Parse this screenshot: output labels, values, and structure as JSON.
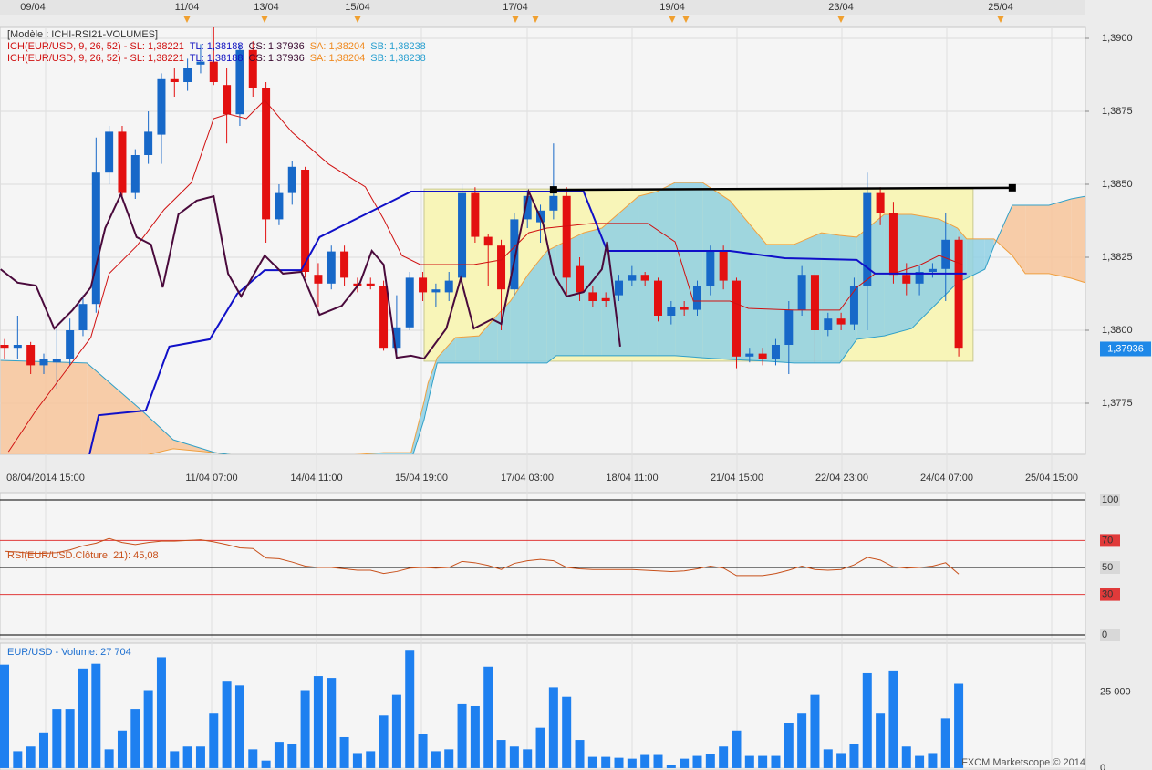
{
  "chart_data": [
    {
      "type": "candlestick",
      "legend": {
        "model": "[Modèle : ICHI-RSI21-VOLUMES]",
        "rows": [
          [
            {
              "text": "ICH(EUR/USD, 9, 26, 52) -  SL: 1,38221",
              "color": "#d01010"
            },
            {
              "text": "TL: 1,38188",
              "color": "#1010c0"
            },
            {
              "text": "CS: 1,37936",
              "color": "#3a0a30"
            },
            {
              "text": "SA: 1,38204",
              "color": "#f08a20"
            },
            {
              "text": "SB: 1,38238",
              "color": "#2aa0d0"
            }
          ],
          [
            {
              "text": "ICH(EUR/USD, 9, 26, 52) -  SL: 1,38221",
              "color": "#d01010"
            },
            {
              "text": "TL: 1,38188",
              "color": "#1010c0"
            },
            {
              "text": "CS: 1,37936",
              "color": "#3a0a30"
            },
            {
              "text": "SA: 1,38204",
              "color": "#f08a20"
            },
            {
              "text": "SB: 1,38238",
              "color": "#2aa0d0"
            }
          ]
        ]
      },
      "top_dates": [
        "09/04",
        "11/04",
        "13/04",
        "15/04",
        "17/04",
        "19/04",
        "23/04",
        "25/04"
      ],
      "time_labels": [
        "08/04/2014 15:00",
        "11/04 07:00",
        "14/04 11:00",
        "15/04 19:00",
        "17/04 03:00",
        "18/04 11:00",
        "21/04 15:00",
        "22/04 23:00",
        "24/04 07:00",
        "25/04 15:00"
      ],
      "open": [
        1.3795,
        1.3794,
        1.3795,
        1.3788,
        1.3789,
        1.379,
        1.38,
        1.3809,
        1.3854,
        1.3868,
        1.3847,
        1.386,
        1.3867,
        1.3886,
        1.3885,
        1.3891,
        1.3892,
        1.3884,
        1.3874,
        1.3896,
        1.3883,
        1.3838,
        1.3847,
        1.3855,
        1.3819,
        1.3816,
        1.3827,
        1.3816,
        1.3816,
        1.3815,
        1.3794,
        1.3801,
        1.3818,
        1.3813,
        1.3813,
        1.3818,
        1.3847,
        1.3832,
        1.3829,
        1.3814,
        1.3838,
        1.3837,
        1.3841,
        1.3846,
        1.3822,
        1.3813,
        1.3811,
        1.3812,
        1.3817,
        1.3819,
        1.3817,
        1.3805,
        1.3808,
        1.3807,
        1.3815,
        1.3827,
        1.3817,
        1.3791,
        1.3792,
        1.379,
        1.3795,
        1.3807,
        1.3819,
        1.38,
        1.3804,
        1.3802,
        1.3815,
        1.3847,
        1.384,
        1.3819,
        1.3816,
        1.382,
        1.3821,
        1.3831
      ],
      "high": [
        1.3797,
        1.3805,
        1.3796,
        1.3792,
        1.3802,
        1.3804,
        1.3812,
        1.3866,
        1.387,
        1.387,
        1.3862,
        1.3875,
        1.3888,
        1.389,
        1.3893,
        1.3898,
        1.3905,
        1.389,
        1.3898,
        1.3899,
        1.3885,
        1.385,
        1.3858,
        1.3856,
        1.3823,
        1.3829,
        1.3829,
        1.3818,
        1.3818,
        1.3817,
        1.3812,
        1.382,
        1.382,
        1.3816,
        1.382,
        1.385,
        1.3849,
        1.3833,
        1.3831,
        1.384,
        1.3848,
        1.3843,
        1.3864,
        1.3849,
        1.3825,
        1.3815,
        1.3813,
        1.3819,
        1.3822,
        1.382,
        1.3818,
        1.381,
        1.381,
        1.3817,
        1.3829,
        1.3829,
        1.3818,
        1.3794,
        1.3794,
        1.3797,
        1.381,
        1.3822,
        1.382,
        1.3806,
        1.3806,
        1.3818,
        1.3854,
        1.3849,
        1.3844,
        1.3823,
        1.3822,
        1.3823,
        1.384,
        1.3832
      ],
      "low": [
        1.379,
        1.379,
        1.3785,
        1.3785,
        1.378,
        1.3788,
        1.3798,
        1.3806,
        1.385,
        1.3845,
        1.3845,
        1.3857,
        1.3857,
        1.388,
        1.3882,
        1.3888,
        1.3884,
        1.3864,
        1.387,
        1.388,
        1.383,
        1.3836,
        1.3843,
        1.3818,
        1.3808,
        1.3814,
        1.3815,
        1.3813,
        1.3814,
        1.3793,
        1.3792,
        1.38,
        1.381,
        1.3808,
        1.381,
        1.381,
        1.383,
        1.3815,
        1.38,
        1.3812,
        1.3835,
        1.383,
        1.3838,
        1.3812,
        1.381,
        1.3808,
        1.3808,
        1.381,
        1.3815,
        1.3815,
        1.3803,
        1.3802,
        1.3805,
        1.3805,
        1.3812,
        1.3814,
        1.3787,
        1.3789,
        1.3788,
        1.3788,
        1.3785,
        1.3805,
        1.3789,
        1.3798,
        1.38,
        1.38,
        1.38,
        1.3836,
        1.3816,
        1.3812,
        1.3812,
        1.3818,
        1.381,
        1.3791
      ],
      "close": [
        1.3794,
        1.3795,
        1.3788,
        1.379,
        1.379,
        1.38,
        1.3809,
        1.3854,
        1.3868,
        1.3847,
        1.386,
        1.3868,
        1.3886,
        1.3885,
        1.389,
        1.3892,
        1.3885,
        1.3874,
        1.3896,
        1.3883,
        1.3838,
        1.3847,
        1.3856,
        1.382,
        1.3816,
        1.3827,
        1.3818,
        1.3815,
        1.3815,
        1.3794,
        1.3801,
        1.3818,
        1.3813,
        1.3814,
        1.3817,
        1.3847,
        1.3832,
        1.3829,
        1.3814,
        1.3838,
        1.3846,
        1.3841,
        1.3846,
        1.3818,
        1.3813,
        1.381,
        1.381,
        1.3817,
        1.3819,
        1.3817,
        1.3805,
        1.3808,
        1.3807,
        1.3815,
        1.3827,
        1.3817,
        1.3791,
        1.3792,
        1.379,
        1.3795,
        1.3807,
        1.3819,
        1.38,
        1.3804,
        1.3802,
        1.3815,
        1.3847,
        1.384,
        1.3819,
        1.3816,
        1.382,
        1.3821,
        1.3831,
        1.3794
      ],
      "colors": {
        "up": "#1768c8",
        "down": "#e31010"
      },
      "ylim": [
        1.37575,
        1.390375
      ],
      "yticks": [
        {
          "value": 1.3775,
          "label": "1,3775"
        },
        {
          "value": 1.38,
          "label": "1,3800"
        },
        {
          "value": 1.3825,
          "label": "1,3825"
        },
        {
          "value": 1.385,
          "label": "1,3850"
        },
        {
          "value": 1.3875,
          "label": "1,3875"
        },
        {
          "value": 1.39,
          "label": "1,3900"
        }
      ],
      "box": {
        "x": [
          32.1,
          74.1
        ],
        "values": [
          1.37894,
          1.38484
        ],
        "color": "#f8f5b8"
      },
      "cloud": {
        "x": [
          -0.3,
          6.3,
          10.5,
          12.9,
          16.1,
          20.6,
          29.0,
          31.1,
          32.1,
          32.4,
          33.1,
          34.5,
          36.3,
          37.7,
          38.7,
          40.1,
          41.5,
          42.2,
          44.3,
          45.7,
          48.5,
          49.9,
          51.3,
          53.4,
          55.5,
          58.3,
          60.4,
          62.5,
          63.9,
          65.2,
          67.3,
          69.4,
          71.5,
          72.9,
          73.6,
          75.0,
          75.7,
          77.1,
          78.1,
          79.9,
          81.6,
          82.7
        ],
        "sa": [
          1.37553,
          1.37553,
          1.37569,
          1.37594,
          1.37581,
          1.37553,
          1.37581,
          1.37581,
          1.37756,
          1.37819,
          1.37906,
          1.37975,
          1.37981,
          1.38053,
          1.381,
          1.38194,
          1.38272,
          1.38288,
          1.38334,
          1.3835,
          1.38459,
          1.38475,
          1.38506,
          1.38506,
          1.38444,
          1.38294,
          1.38294,
          1.38334,
          1.38325,
          1.38319,
          1.38397,
          1.38397,
          1.38381,
          1.3835,
          1.38313,
          1.38313,
          1.38313,
          1.38256,
          1.38194,
          1.38194,
          1.38178,
          1.38163
        ],
        "sb": [
          1.37897,
          1.37888,
          1.37725,
          1.37625,
          1.37581,
          1.37553,
          1.37538,
          1.37553,
          1.37694,
          1.37756,
          1.37888,
          1.37888,
          1.37888,
          1.37888,
          1.37888,
          1.37888,
          1.37888,
          1.37913,
          1.37913,
          1.37913,
          1.37913,
          1.37913,
          1.37913,
          1.37906,
          1.379,
          1.37894,
          1.37888,
          1.37888,
          1.37888,
          1.37969,
          1.37981,
          1.38006,
          1.381,
          1.38163,
          1.38178,
          1.38209,
          1.38288,
          1.38428,
          1.38428,
          1.38428,
          1.3845,
          1.38459
        ],
        "sa_color": "#f0a040",
        "sb_color": "#30a0c8",
        "fill_up": "#8fd0e4",
        "fill_down": "#f7c49a"
      },
      "lines": [
        {
          "color": "#d01010",
          "width": 1,
          "x": [
            0.3,
            2.4,
            4.5,
            6.6,
            8.0,
            10.1,
            12.2,
            14.3,
            16.0,
            17.1,
            18.5,
            19.9,
            22.0,
            24.8,
            27.6,
            29.0,
            30.4,
            31.8,
            35.9,
            38.0,
            40.1,
            41.5,
            45.0,
            49.2,
            51.3,
            52.7,
            55.5,
            56.9,
            60.4,
            63.9,
            65.2,
            66.6,
            68.0,
            70.1,
            71.5,
            73.3
          ],
          "values": [
            1.37584,
            1.37725,
            1.3785,
            1.37975,
            1.38194,
            1.38288,
            1.38413,
            1.38506,
            1.38725,
            1.38741,
            1.38725,
            1.38788,
            1.38678,
            1.38569,
            1.38491,
            1.38381,
            1.38256,
            1.38225,
            1.38225,
            1.38241,
            1.38334,
            1.3835,
            1.38366,
            1.38366,
            1.38303,
            1.381,
            1.381,
            1.38075,
            1.38069,
            1.38069,
            1.38147,
            1.38194,
            1.38194,
            1.38225,
            1.38256,
            1.38225
          ]
        },
        {
          "color": "#1010c8",
          "width": 2,
          "x": [
            6.5,
            7.2,
            10.8,
            12.6,
            15.7,
            17.8,
            19.9,
            22.7,
            24.1,
            27.6,
            31.1,
            44.3,
            46.1,
            55.5,
            59.7,
            65.2,
            66.6,
            73.6
          ],
          "values": [
            1.37575,
            1.37709,
            1.37725,
            1.37944,
            1.37969,
            1.38125,
            1.38206,
            1.38206,
            1.38319,
            1.38397,
            1.38475,
            1.38475,
            1.38272,
            1.38272,
            1.38247,
            1.38241,
            1.38194,
            1.38194
          ]
        },
        {
          "color": "#4a0a3c",
          "width": 2,
          "x": [
            -0.3,
            1.0,
            2.4,
            3.8,
            5.2,
            6.6,
            7.7,
            8.9,
            10.1,
            11.2,
            12.1,
            13.3,
            14.7,
            16.0,
            17.1,
            18.1,
            19.9,
            21.3,
            22.7,
            24.1,
            25.8,
            27.2,
            28.1,
            29.0,
            30.0,
            31.1,
            32.1,
            33.8,
            34.9,
            35.9,
            37.3,
            38.0,
            40.1,
            41.2,
            42.0,
            43.0,
            44.3,
            45.7,
            46.1,
            47.1
          ],
          "values": [
            1.38209,
            1.38163,
            1.38153,
            1.38006,
            1.38069,
            1.38147,
            1.3835,
            1.38466,
            1.38319,
            1.38294,
            1.38147,
            1.38397,
            1.38444,
            1.38459,
            1.38194,
            1.38116,
            1.38256,
            1.38194,
            1.382,
            1.38053,
            1.38084,
            1.38163,
            1.38272,
            1.38225,
            1.37906,
            1.37913,
            1.37903,
            1.38006,
            1.38178,
            1.38006,
            1.38038,
            1.38022,
            1.38475,
            1.38366,
            1.38194,
            1.38116,
            1.38131,
            1.38209,
            1.38303,
            1.37944
          ]
        }
      ],
      "trendline": {
        "x": [
          42.0,
          77.1
        ],
        "values": [
          1.38481,
          1.38488
        ],
        "color": "#000000"
      },
      "last_price": {
        "value": 1.37936,
        "label": "1,37936",
        "color": "#1e88e8"
      }
    },
    {
      "type": "line",
      "title": "RSI(EUR/USD.Clôture, 21): 45,08",
      "color": "#c8501a",
      "values": [
        62,
        61.5,
        60.5,
        60.5,
        61,
        63,
        66,
        68,
        71.5,
        68.5,
        67,
        68.5,
        69.5,
        69.5,
        70,
        70.5,
        69,
        67,
        64.5,
        64,
        57,
        56.5,
        54,
        51,
        50,
        50,
        49,
        48,
        48,
        45.5,
        47,
        49.5,
        50,
        49.5,
        50,
        54.5,
        53.5,
        51.5,
        48.5,
        53,
        55,
        56,
        55,
        50,
        49,
        48.5,
        48.5,
        48.5,
        48.5,
        48,
        47.5,
        47,
        47.5,
        49,
        51,
        49.5,
        44,
        44,
        44,
        45.5,
        48,
        51,
        48.5,
        48,
        48.5,
        52,
        57.5,
        55.5,
        50.5,
        49.5,
        50,
        51,
        53.5,
        45.08
      ],
      "ylim": [
        -2.7,
        105.4
      ],
      "yticks": [
        0,
        30,
        50,
        70,
        100
      ],
      "tick_colors": [
        "#000000",
        "#e03a3a",
        "#000000",
        "#e03a3a",
        "#000000"
      ]
    },
    {
      "type": "bar",
      "title": "EUR/USD - Volume: 27 704",
      "color": "#1e80f0",
      "values": [
        33950,
        5555,
        7100,
        11730,
        19440,
        19440,
        32710,
        34250,
        6170,
        12340,
        19440,
        25610,
        36420,
        5555,
        7100,
        7100,
        17900,
        28700,
        27160,
        6170,
        2470,
        8640,
        8020,
        25610,
        30240,
        29630,
        10180,
        4940,
        5555,
        17280,
        24070,
        38580,
        11110,
        5555,
        6170,
        20990,
        20370,
        33330,
        9260,
        7100,
        6170,
        13270,
        26540,
        23450,
        9260,
        3700,
        3700,
        3390,
        3090,
        4320,
        4320,
        930,
        3090,
        4010,
        4630,
        7100,
        12340,
        4010,
        4010,
        4010,
        14810,
        17900,
        24070,
        6170,
        4940,
        8020,
        31170,
        17900,
        32090,
        7100,
        4010,
        4940,
        16360,
        27704
      ],
      "ylim": [
        -617,
        41049
      ],
      "yticks": [
        0,
        {
          "value": 25000,
          "label": "25 000"
        }
      ]
    }
  ],
  "footer": "FXCM Marketscope © 2014"
}
